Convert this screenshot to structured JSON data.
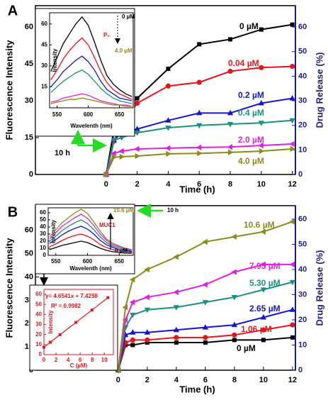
{
  "chart_data": [
    {
      "type": "line",
      "panel_label": "A",
      "x_label": "Time (h)",
      "y_label": "Fluorescence Intensity",
      "y2_label": "Drug Release (%)",
      "x": [
        0,
        0.5,
        1,
        2,
        4,
        6,
        8,
        10,
        12
      ],
      "xlim": [
        -4.56,
        12.2
      ],
      "xticks": [
        0,
        2,
        4,
        6,
        8,
        10,
        12
      ],
      "ylim": [
        0,
        68.7
      ],
      "yticks": [
        0,
        15,
        30,
        45,
        60
      ],
      "y2lim": [
        0,
        68.7
      ],
      "y2ticks": [
        0,
        10,
        20,
        30,
        40,
        50,
        60
      ],
      "annotations": [
        {
          "text": "10 h",
          "color": "#000000"
        }
      ],
      "series": [
        {
          "name": "0 µM",
          "color": "#000000",
          "marker": "square",
          "axis": "y2",
          "values": [
            0,
            18,
            25,
            31,
            43,
            53,
            55,
            59,
            61
          ]
        },
        {
          "name": "0.04 µM",
          "color": "#e8141b",
          "marker": "circle",
          "axis": "y2",
          "values": [
            0,
            13.5,
            20,
            29,
            36,
            37.5,
            42,
            43.5,
            44
          ]
        },
        {
          "name": "0.2 µM",
          "color": "#1414d2",
          "marker": "triangle-up",
          "axis": "y2",
          "values": [
            0,
            14,
            17,
            18.5,
            22,
            25,
            25,
            29,
            31
          ]
        },
        {
          "name": "0.4 µM",
          "color": "#1a9080",
          "marker": "triangle-down",
          "axis": "y2",
          "values": [
            0,
            14,
            15,
            17,
            19,
            20,
            20.5,
            21,
            22
          ]
        },
        {
          "name": "2.0 µM",
          "color": "#e020e0",
          "marker": "triangle-left",
          "axis": "y2",
          "values": [
            0,
            8.6,
            9.5,
            10.4,
            10.7,
            11,
            11.2,
            11.8,
            12.4
          ]
        },
        {
          "name": "4.0 µM",
          "color": "#8c8c1a",
          "marker": "triangle-right",
          "axis": "y2",
          "values": [
            0,
            7,
            7.2,
            7.5,
            8.4,
            8.6,
            9,
            9.5,
            10.4
          ]
        }
      ]
    },
    {
      "type": "line",
      "x_label": "Wavelenth (nm)",
      "y_label": "Intensity",
      "x": [
        540,
        550,
        560,
        570,
        580,
        590,
        600,
        610,
        620,
        630,
        640,
        650,
        660,
        670
      ],
      "xlim": [
        538,
        672
      ],
      "xticks": [
        550,
        600,
        650
      ],
      "ylim": [
        0,
        68
      ],
      "yticks": [
        15,
        30,
        45,
        60
      ],
      "annotations": [
        {
          "text": "0 µM",
          "color": "#000000"
        },
        {
          "text": "P₀",
          "color": "#e8141b"
        },
        {
          "text": "4.0 µM",
          "color": "#8c8c1a"
        }
      ],
      "series": [
        {
          "color": "#000000",
          "values": [
            26,
            36,
            46,
            53,
            60,
            65,
            59,
            47,
            34,
            23,
            17,
            13,
            10,
            8
          ]
        },
        {
          "color": "#e8141b",
          "values": [
            20,
            27,
            35,
            41,
            46,
            50,
            45,
            36,
            26,
            18,
            13,
            10,
            8,
            6
          ]
        },
        {
          "color": "#1414d2",
          "values": [
            15,
            20,
            26,
            30,
            34,
            37,
            33,
            27,
            19,
            13,
            10,
            7,
            6,
            5
          ]
        },
        {
          "color": "#1a9080",
          "values": [
            11,
            15,
            19,
            22,
            25,
            27,
            24,
            19,
            14,
            10,
            7,
            5,
            4,
            3
          ]
        },
        {
          "color": "#e020e0",
          "values": [
            4,
            5,
            7,
            8,
            9,
            10,
            9,
            7,
            5,
            4,
            3,
            2,
            2,
            1
          ]
        },
        {
          "color": "#8c8c1a",
          "values": [
            3,
            4,
            5,
            6,
            6,
            7,
            6,
            5,
            4,
            3,
            2,
            2,
            1,
            1
          ]
        }
      ]
    },
    {
      "type": "line",
      "panel_label": "B",
      "x_label": "Time (h)",
      "y_label": "Fluorescence Intensity",
      "y2_label": "Drug Release (%)",
      "x": [
        0,
        0.5,
        1,
        2,
        4,
        6,
        8,
        10,
        12
      ],
      "xlim": [
        -5.7,
        12.2
      ],
      "xticks": [
        0,
        2,
        4,
        6,
        8,
        10,
        12
      ],
      "ylim": [
        0,
        70.6
      ],
      "yticks": [
        0,
        10,
        20,
        30,
        40,
        50,
        60
      ],
      "y2lim": [
        0,
        65.35
      ],
      "y2ticks": [
        0,
        10,
        20,
        30,
        40,
        50,
        60
      ],
      "annotations": [],
      "series": [
        {
          "name": "0 µM",
          "color": "#000000",
          "marker": "square",
          "axis": "y2",
          "values": [
            0,
            10,
            10,
            11,
            11,
            11,
            12,
            12,
            13
          ]
        },
        {
          "name": "1.06 µM",
          "color": "#e8141b",
          "marker": "circle",
          "axis": "y2",
          "values": [
            0,
            11,
            12,
            12,
            13,
            13,
            14,
            16,
            18
          ]
        },
        {
          "name": "2.65 µM",
          "color": "#1414d2",
          "marker": "triangle-up",
          "axis": "y2",
          "values": [
            0,
            14,
            15,
            15,
            16,
            17,
            18,
            21,
            24
          ]
        },
        {
          "name": "5.30 µM",
          "color": "#1a9080",
          "marker": "triangle-down",
          "axis": "y2",
          "values": [
            0,
            17,
            22,
            24,
            25,
            27,
            29,
            32,
            35
          ]
        },
        {
          "name": "7.95 µM",
          "color": "#e020e0",
          "marker": "triangle-left",
          "axis": "y2",
          "values": [
            0,
            20,
            27,
            29,
            31,
            34,
            39,
            42,
            42
          ]
        },
        {
          "name": "10.6 µM",
          "color": "#8c8c1a",
          "marker": "triangle-left",
          "axis": "y2",
          "values": [
            0,
            25,
            36,
            40,
            45,
            51,
            53,
            55,
            59
          ]
        }
      ]
    },
    {
      "type": "line",
      "x_label": "Wavelenth (nm)",
      "y_label": "Intensity",
      "x": [
        540,
        550,
        560,
        570,
        580,
        590,
        600,
        610,
        620,
        630,
        640,
        650,
        660,
        670
      ],
      "xlim": [
        538,
        672
      ],
      "xticks": [
        550,
        600,
        650
      ],
      "ylim": [
        0,
        67
      ],
      "yticks": [
        0,
        10,
        20,
        30,
        40,
        50,
        60
      ],
      "annotations": [
        {
          "text": "10.6 µM",
          "color": "#8c8c1a"
        },
        {
          "text": "MUC1",
          "color": "#e8141b"
        },
        {
          "text": "0 µM",
          "color": "#000000"
        },
        {
          "text": "10 h",
          "color": "#000000"
        }
      ],
      "series": [
        {
          "color": "#8c8c1a",
          "values": [
            26,
            36,
            46,
            53,
            60,
            65,
            59,
            47,
            34,
            23,
            17,
            13,
            10,
            8
          ]
        },
        {
          "color": "#e020e0",
          "values": [
            23,
            32,
            41,
            47,
            53,
            58,
            52,
            42,
            30,
            21,
            15,
            12,
            9,
            7
          ]
        },
        {
          "color": "#1a9080",
          "values": [
            20,
            27,
            35,
            41,
            46,
            50,
            45,
            36,
            26,
            18,
            13,
            10,
            8,
            6
          ]
        },
        {
          "color": "#1414d2",
          "values": [
            17,
            22,
            29,
            34,
            38,
            41,
            37,
            30,
            21,
            15,
            11,
            8,
            7,
            5
          ]
        },
        {
          "color": "#e8141b",
          "values": [
            12,
            16,
            21,
            25,
            28,
            30,
            27,
            22,
            15,
            11,
            8,
            6,
            5,
            4
          ]
        },
        {
          "color": "#000000",
          "values": [
            8,
            11,
            14,
            16,
            18,
            20,
            18,
            14,
            10,
            7,
            5,
            4,
            3,
            3
          ]
        }
      ]
    },
    {
      "type": "scatter",
      "x_label": "C (µM)",
      "y_label": "Intensity",
      "color": "#e8141b",
      "x": [
        0,
        1.06,
        2.65,
        5.3,
        7.95,
        10.6
      ],
      "values": [
        7.4,
        12.4,
        19.8,
        32.1,
        44.4,
        56.8
      ],
      "xlim": [
        0,
        11.5
      ],
      "xticks": [
        0,
        2,
        4,
        6,
        8,
        10
      ],
      "ylim": [
        0,
        65
      ],
      "yticks": [
        0,
        10,
        20,
        30,
        40,
        50,
        60
      ],
      "fit": {
        "slope": 4.6541,
        "intercept": 7.4258
      },
      "annotations": [
        {
          "text": "y= 4.6541x + 7.4258",
          "color": "#e8141b"
        },
        {
          "text": "R² = 0.9982",
          "color": "#e8141b"
        }
      ]
    }
  ]
}
